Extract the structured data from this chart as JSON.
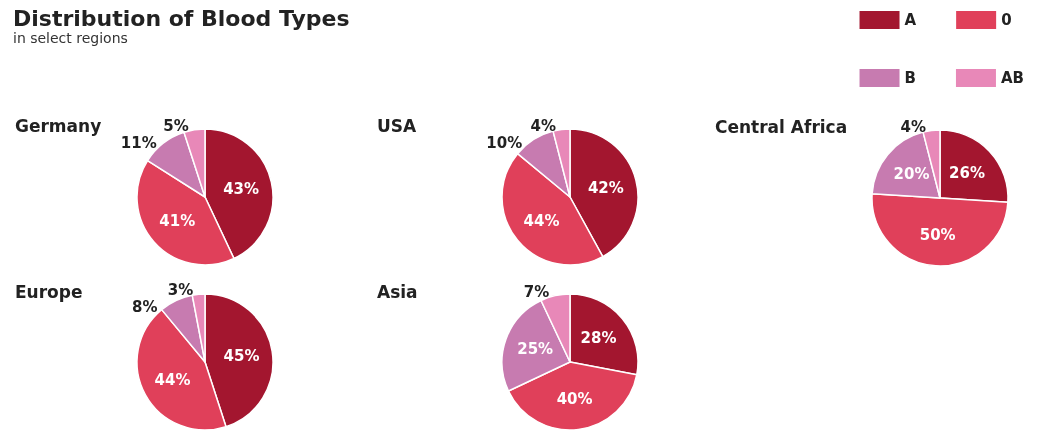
{
  "chart_data": {
    "type": "pie",
    "title": "Distribution of Blood Types",
    "subtitle": "in select regions",
    "categories": [
      "A",
      "0",
      "B",
      "AB"
    ],
    "colors": [
      "#a3162f",
      "#e0405a",
      "#c77bb0",
      "#e888b8"
    ],
    "legend": "top right",
    "series": [
      {
        "name": "Germany",
        "values": [
          43,
          41,
          11,
          5
        ],
        "value_labels": [
          "43%",
          "41%",
          "11%",
          "5%"
        ]
      },
      {
        "name": "USA",
        "values": [
          42,
          44,
          10,
          4
        ],
        "value_labels": [
          "42%",
          "44%",
          "10%",
          "4%"
        ]
      },
      {
        "name": "Central Africa",
        "values": [
          26,
          50,
          20,
          4
        ],
        "value_labels": [
          "26%",
          "50%",
          "20%",
          "4%"
        ]
      },
      {
        "name": "Europe",
        "values": [
          45,
          44,
          8,
          3
        ],
        "value_labels": [
          "45%",
          "44%",
          "8%",
          "3%"
        ]
      },
      {
        "name": "Asia",
        "values": [
          28,
          40,
          25,
          7
        ],
        "value_labels": [
          "28%",
          "40%",
          "25%",
          "7%"
        ]
      }
    ]
  }
}
